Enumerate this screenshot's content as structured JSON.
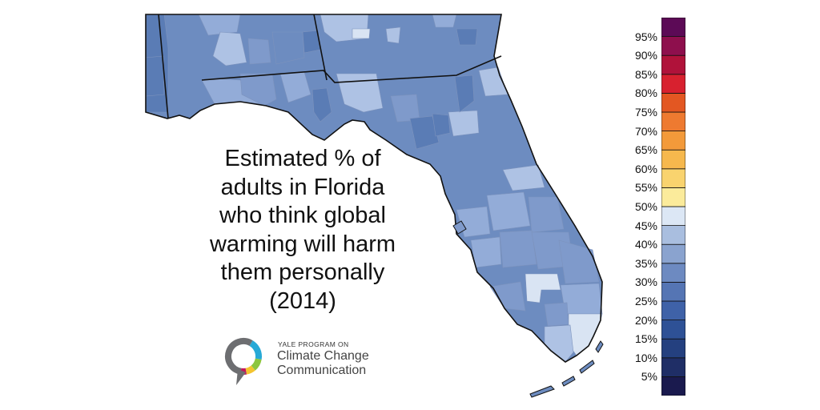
{
  "title": {
    "lines": [
      "Estimated % of",
      "adults in Florida",
      "who think global",
      "warming will harm",
      "them personally",
      "(2014)"
    ]
  },
  "organization": {
    "prefix": "YALE PROGRAM ON",
    "line1": "Climate Change",
    "line2": "Communication",
    "logo_colors": [
      "#27a9d6",
      "#8cc63f",
      "#f4c430",
      "#c2185b",
      "#6d6e71"
    ]
  },
  "map": {
    "region": "Florida",
    "ocean_color": "#ffffff",
    "border_color": "#111111",
    "county_palette": [
      "#5a7cb5",
      "#6d8cc0",
      "#7f9acb",
      "#93acd8",
      "#aec2e4",
      "#d9e4f3"
    ]
  },
  "legend": {
    "ticks": [
      "95%",
      "90%",
      "85%",
      "80%",
      "75%",
      "70%",
      "65%",
      "60%",
      "55%",
      "50%",
      "45%",
      "40%",
      "35%",
      "30%",
      "25%",
      "20%",
      "15%",
      "10%",
      "5%"
    ],
    "colors": [
      "#1a1a4e",
      "#1f2e66",
      "#24407f",
      "#2e5196",
      "#3f62a8",
      "#5575b4",
      "#6d8ac1",
      "#8aa3cf",
      "#a9bedf",
      "#dce7f5",
      "#fbeb9b",
      "#f9d36e",
      "#f6b84d",
      "#f39a3a",
      "#ee7a30",
      "#e35722",
      "#d8212f",
      "#b0123a",
      "#8e0f4d",
      "#5c0a56"
    ]
  }
}
